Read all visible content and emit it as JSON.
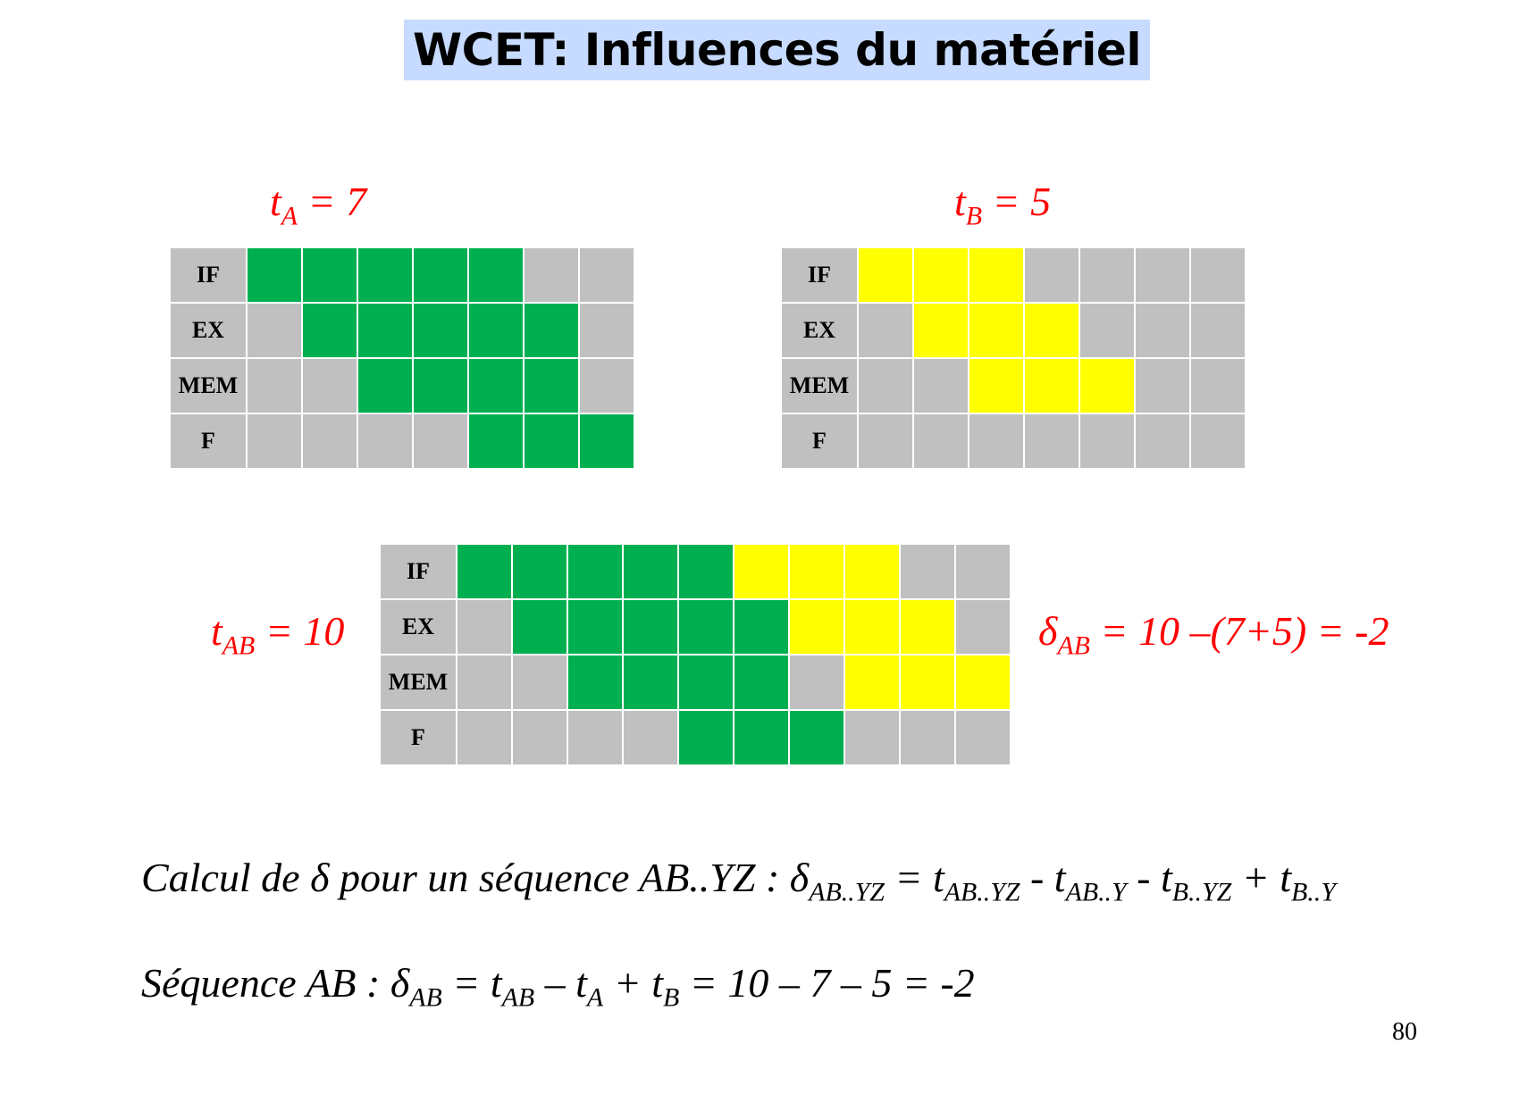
{
  "title": "WCET: Influences du matériel",
  "colors": {
    "A": "#00b050",
    "B": "#ffff00",
    "empty": "#c0c0c0",
    "title_bg": "#c6dbff",
    "annotation": "#ff0000"
  },
  "labels": {
    "tA": {
      "t": "t",
      "sub": "A",
      "rest": " = 7"
    },
    "tB": {
      "t": "t",
      "sub": "B",
      "rest": " = 5"
    },
    "tAB": {
      "t": "t",
      "sub": "AB",
      "rest": " = 10"
    },
    "deltaAB": {
      "d": "δ",
      "sub": "AB",
      "rest": " = 10 –(7+5) = -2"
    }
  },
  "stages": [
    "IF",
    "EX",
    "MEM",
    "F"
  ],
  "diagrams": {
    "A": {
      "rows": [
        [
          "A",
          "A",
          "A",
          "A",
          "A",
          "",
          ""
        ],
        [
          "",
          "A",
          "A",
          "A",
          "A",
          "A",
          ""
        ],
        [
          "",
          "",
          "A",
          "A",
          "A",
          "A",
          ""
        ],
        [
          "",
          "",
          "",
          "",
          "A",
          "A",
          "A"
        ]
      ]
    },
    "B": {
      "rows": [
        [
          "B",
          "B",
          "B",
          "",
          "",
          "",
          ""
        ],
        [
          "",
          "B",
          "B",
          "B",
          "",
          "",
          ""
        ],
        [
          "",
          "",
          "B",
          "B",
          "B",
          "",
          ""
        ],
        [
          "",
          "",
          "",
          "",
          "",
          "",
          ""
        ]
      ]
    },
    "AB": {
      "rows": [
        [
          "A",
          "A",
          "A",
          "A",
          "A",
          "B",
          "B",
          "B",
          "",
          ""
        ],
        [
          "",
          "A",
          "A",
          "A",
          "A",
          "A",
          "B",
          "B",
          "B",
          ""
        ],
        [
          "",
          "",
          "A",
          "A",
          "A",
          "A",
          "",
          "B",
          "B",
          "B"
        ],
        [
          "",
          "",
          "",
          "",
          "A",
          "A",
          "A",
          "",
          "",
          ""
        ]
      ]
    }
  },
  "formula1": {
    "p1": "Calcul de ",
    "delta": "δ",
    "p2": " pour un séquence AB..YZ : ",
    "d2": "δ",
    "s1": "AB..YZ",
    "p3": " = ",
    "t1": "t",
    "s2": "AB..YZ",
    "p4": " - ",
    "t2": "t",
    "s3": "AB..Y",
    "p5": " - ",
    "t3": "t",
    "s4": "B..YZ",
    "p6": " + ",
    "t4": "t",
    "s5": "B..Y"
  },
  "formula2": {
    "p1": "Séquence AB : ",
    "d": "δ",
    "s1": "AB",
    "p2": " = ",
    "t1": "t",
    "s2": "AB",
    "p3": " – ",
    "t2": "t",
    "s3": "A",
    "p4": " + ",
    "t3": "t",
    "s4": "B",
    "p5": " = 10 – 7 – 5  = -2"
  },
  "page_number": "80"
}
